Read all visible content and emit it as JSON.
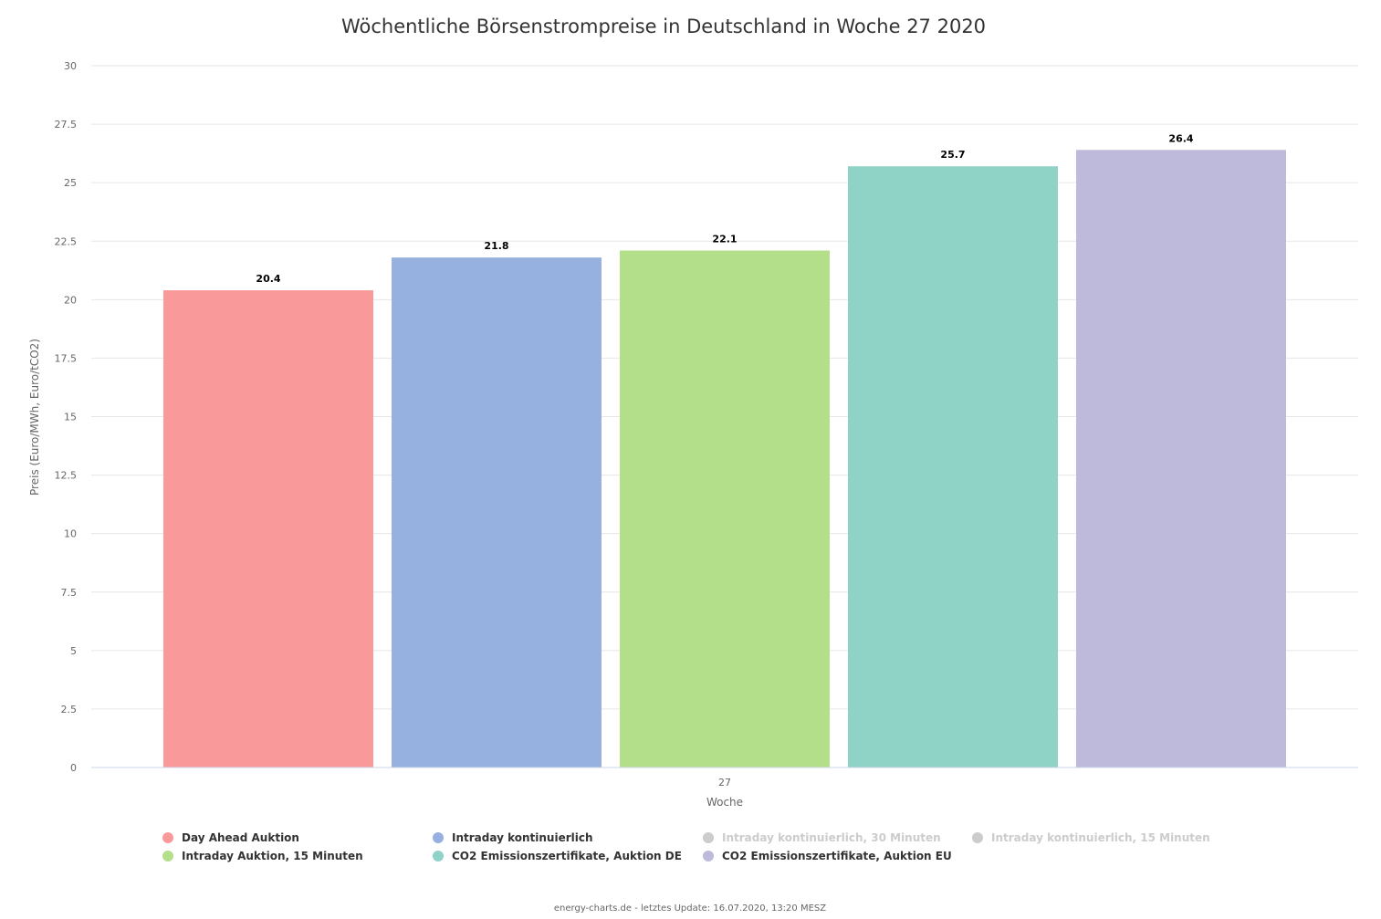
{
  "chart_data": {
    "type": "bar",
    "title": "Wöchentliche Börsenstrompreise in Deutschland in Woche 27 2020",
    "xlabel": "Woche",
    "ylabel": "Preis (Euro/MWh, Euro/tCO2)",
    "categories": [
      "27"
    ],
    "ylim": [
      0,
      30
    ],
    "yticks": [
      "0",
      "2.5",
      "5",
      "7.5",
      "10",
      "12.5",
      "15",
      "17.5",
      "20",
      "22.5",
      "25",
      "27.5",
      "30"
    ],
    "grid": true,
    "legend_position": "bottom",
    "series": [
      {
        "name": "Day Ahead Auktion",
        "values": [
          20.4
        ],
        "label": "20.4",
        "color": "#fa9999",
        "visible": true
      },
      {
        "name": "Intraday kontinuierlich",
        "values": [
          21.8
        ],
        "label": "21.8",
        "color": "#96b0df",
        "visible": true
      },
      {
        "name": "Intraday kontinuierlich, 30 Minuten",
        "values": [
          null
        ],
        "label": "",
        "color": "#cccccc",
        "visible": false
      },
      {
        "name": "Intraday kontinuierlich, 15 Minuten",
        "values": [
          null
        ],
        "label": "",
        "color": "#cccccc",
        "visible": false
      },
      {
        "name": "Intraday Auktion, 15 Minuten",
        "values": [
          22.1
        ],
        "label": "22.1",
        "color": "#b3df8a",
        "visible": true
      },
      {
        "name": "CO2 Emissionszertifikate, Auktion DE",
        "values": [
          25.7
        ],
        "label": "25.7",
        "color": "#8fd3c6",
        "visible": true
      },
      {
        "name": "CO2 Emissionszertifikate, Auktion EU",
        "values": [
          26.4
        ],
        "label": "26.4",
        "color": "#bebadb",
        "visible": true
      }
    ]
  },
  "credits": "energy-charts.de - letztes Update: 16.07.2020, 13:20 MESZ",
  "colors": {
    "hidden_legend_text": "#cccccc",
    "legend_text": "#333333"
  }
}
